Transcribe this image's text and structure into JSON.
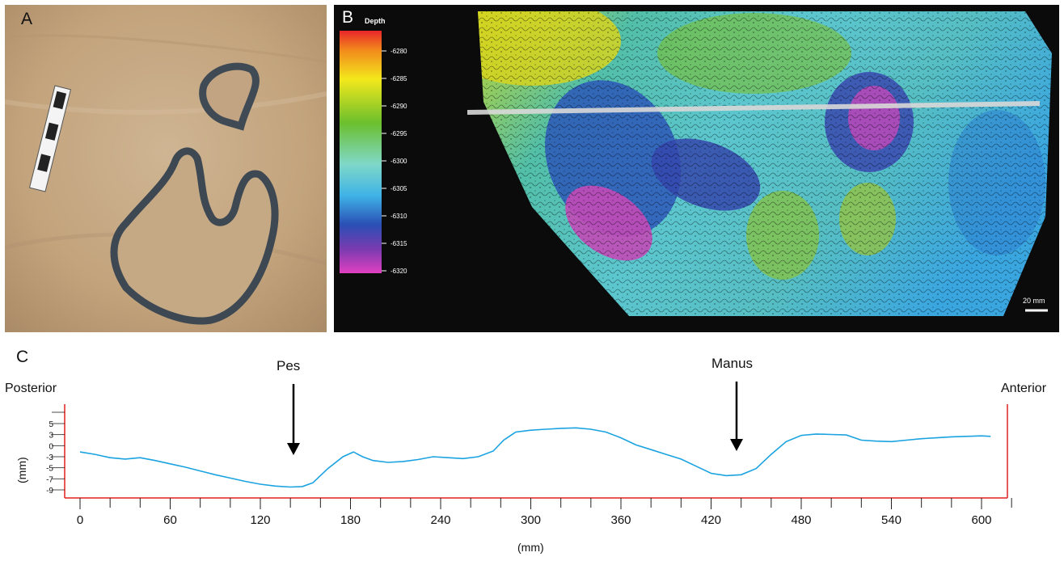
{
  "panels": {
    "a": "A",
    "b": "B",
    "c": "C"
  },
  "depth_legend": {
    "title": "Depth",
    "ticks": [
      "-6280",
      "-6285",
      "-6290",
      "-6295",
      "-6300",
      "-6305",
      "-6310",
      "-6315",
      "-6320"
    ]
  },
  "scale_bar": "20 mm",
  "profile": {
    "posterior_label": "Posterior",
    "anterior_label": "Anterior",
    "pes_label": "Pes",
    "manus_label": "Manus"
  },
  "chart_data": {
    "type": "line",
    "xlabel": "(mm)",
    "ylabel": "(mm)",
    "xlim": [
      0,
      620
    ],
    "ylim": [
      -10,
      8
    ],
    "x_ticks": [
      0,
      60,
      120,
      180,
      240,
      300,
      360,
      420,
      480,
      540,
      600
    ],
    "y_ticks": [
      "5",
      "3",
      "0",
      "-3",
      "-5",
      "-7",
      "-9"
    ],
    "series": [
      {
        "color": "#1aa3e0",
        "x": [
          0,
          10,
          20,
          30,
          40,
          50,
          60,
          70,
          80,
          90,
          100,
          110,
          120,
          130,
          140,
          148,
          155,
          165,
          175,
          182,
          188,
          195,
          205,
          215,
          225,
          235,
          245,
          255,
          265,
          275,
          282,
          290,
          300,
          310,
          320,
          330,
          340,
          350,
          360,
          370,
          380,
          390,
          400,
          410,
          420,
          430,
          440,
          450,
          460,
          470,
          480,
          490,
          500,
          510,
          520,
          530,
          540,
          550,
          560,
          570,
          580,
          590,
          600,
          606
        ],
        "y": [
          -1,
          -1.5,
          -2.2,
          -2.5,
          -2.2,
          -2.8,
          -3.5,
          -4.2,
          -5,
          -5.8,
          -6.5,
          -7.2,
          -7.8,
          -8.2,
          -8.4,
          -8.3,
          -7.5,
          -4.5,
          -2,
          -1,
          -2,
          -2.8,
          -3.2,
          -3,
          -2.6,
          -2,
          -2.2,
          -2.4,
          -2,
          -0.8,
          1.5,
          3.2,
          3.6,
          3.8,
          4,
          4.1,
          3.8,
          3.2,
          2,
          0.5,
          -0.5,
          -1.5,
          -2.5,
          -4,
          -5.5,
          -6,
          -5.8,
          -4.5,
          -1.5,
          1.2,
          2.5,
          2.8,
          2.7,
          2.6,
          1.5,
          1.3,
          1.2,
          1.5,
          1.8,
          2,
          2.2,
          2.3,
          2.4,
          2.3
        ]
      }
    ]
  }
}
